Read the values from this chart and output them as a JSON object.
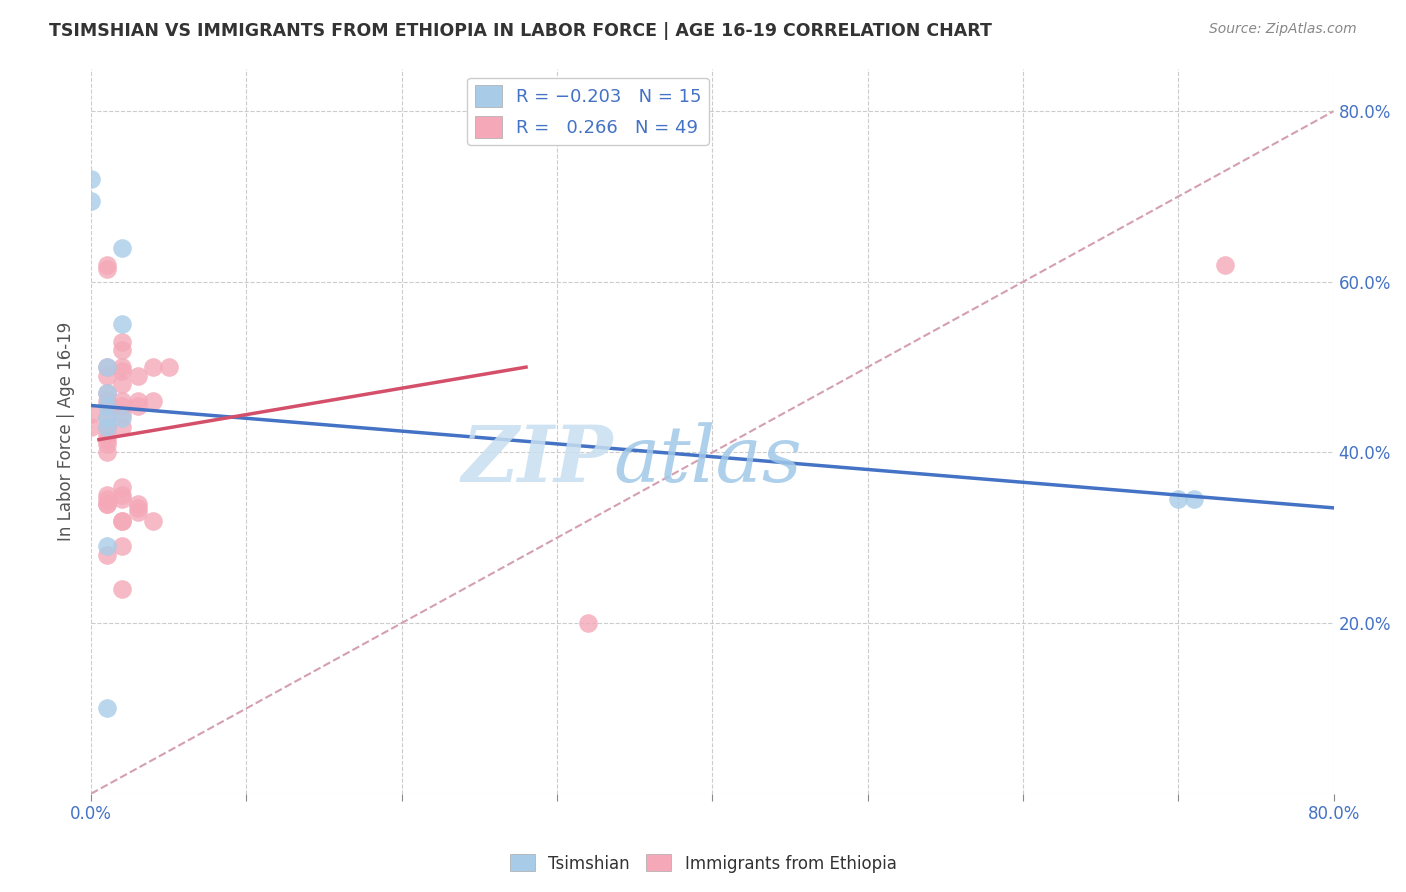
{
  "title": "TSIMSHIAN VS IMMIGRANTS FROM ETHIOPIA IN LABOR FORCE | AGE 16-19 CORRELATION CHART",
  "source": "Source: ZipAtlas.com",
  "ylabel": "In Labor Force | Age 16-19",
  "xlim": [
    0.0,
    0.8
  ],
  "ylim": [
    0.0,
    0.85
  ],
  "x_ticks": [
    0.0,
    0.1,
    0.2,
    0.3,
    0.4,
    0.5,
    0.6,
    0.7,
    0.8
  ],
  "y_ticks": [
    0.0,
    0.2,
    0.4,
    0.6,
    0.8
  ],
  "color_blue": "#a8cce8",
  "color_pink": "#f4a8b8",
  "color_blue_line": "#4472c4",
  "color_pink_line": "#d4506a",
  "color_dashed_line": "#d4a0b0",
  "watermark_zip": "ZIP",
  "watermark_atlas": "atlas",
  "tsimshian_x": [
    0.0,
    0.0,
    0.01,
    0.01,
    0.01,
    0.01,
    0.01,
    0.01,
    0.01,
    0.02,
    0.02,
    0.02,
    0.7,
    0.71
  ],
  "tsimshian_y": [
    0.72,
    0.695,
    0.5,
    0.47,
    0.455,
    0.44,
    0.43,
    0.29,
    0.1,
    0.64,
    0.44,
    0.55,
    0.345,
    0.345
  ],
  "ethiopia_x": [
    0.0,
    0.0,
    0.01,
    0.01,
    0.01,
    0.01,
    0.01,
    0.01,
    0.01,
    0.01,
    0.01,
    0.01,
    0.01,
    0.01,
    0.01,
    0.01,
    0.01,
    0.01,
    0.01,
    0.01,
    0.02,
    0.02,
    0.02,
    0.02,
    0.02,
    0.02,
    0.02,
    0.02,
    0.02,
    0.02,
    0.02,
    0.02,
    0.02,
    0.02,
    0.02,
    0.02,
    0.03,
    0.03,
    0.03,
    0.03,
    0.03,
    0.03,
    0.04,
    0.04,
    0.04,
    0.05,
    0.32,
    0.73
  ],
  "ethiopia_y": [
    0.445,
    0.43,
    0.62,
    0.615,
    0.5,
    0.49,
    0.47,
    0.46,
    0.455,
    0.44,
    0.43,
    0.42,
    0.415,
    0.41,
    0.4,
    0.35,
    0.345,
    0.34,
    0.34,
    0.28,
    0.53,
    0.52,
    0.5,
    0.495,
    0.48,
    0.46,
    0.455,
    0.445,
    0.43,
    0.36,
    0.35,
    0.345,
    0.32,
    0.32,
    0.29,
    0.24,
    0.49,
    0.46,
    0.455,
    0.34,
    0.335,
    0.33,
    0.5,
    0.46,
    0.32,
    0.5,
    0.2,
    0.62
  ],
  "blue_line_x": [
    0.0,
    0.8
  ],
  "blue_line_y": [
    0.455,
    0.335
  ],
  "pink_line_x": [
    0.005,
    0.28
  ],
  "pink_line_y": [
    0.415,
    0.5
  ],
  "dashed_line_x": [
    0.0,
    0.8
  ],
  "dashed_line_y": [
    0.0,
    0.8
  ]
}
